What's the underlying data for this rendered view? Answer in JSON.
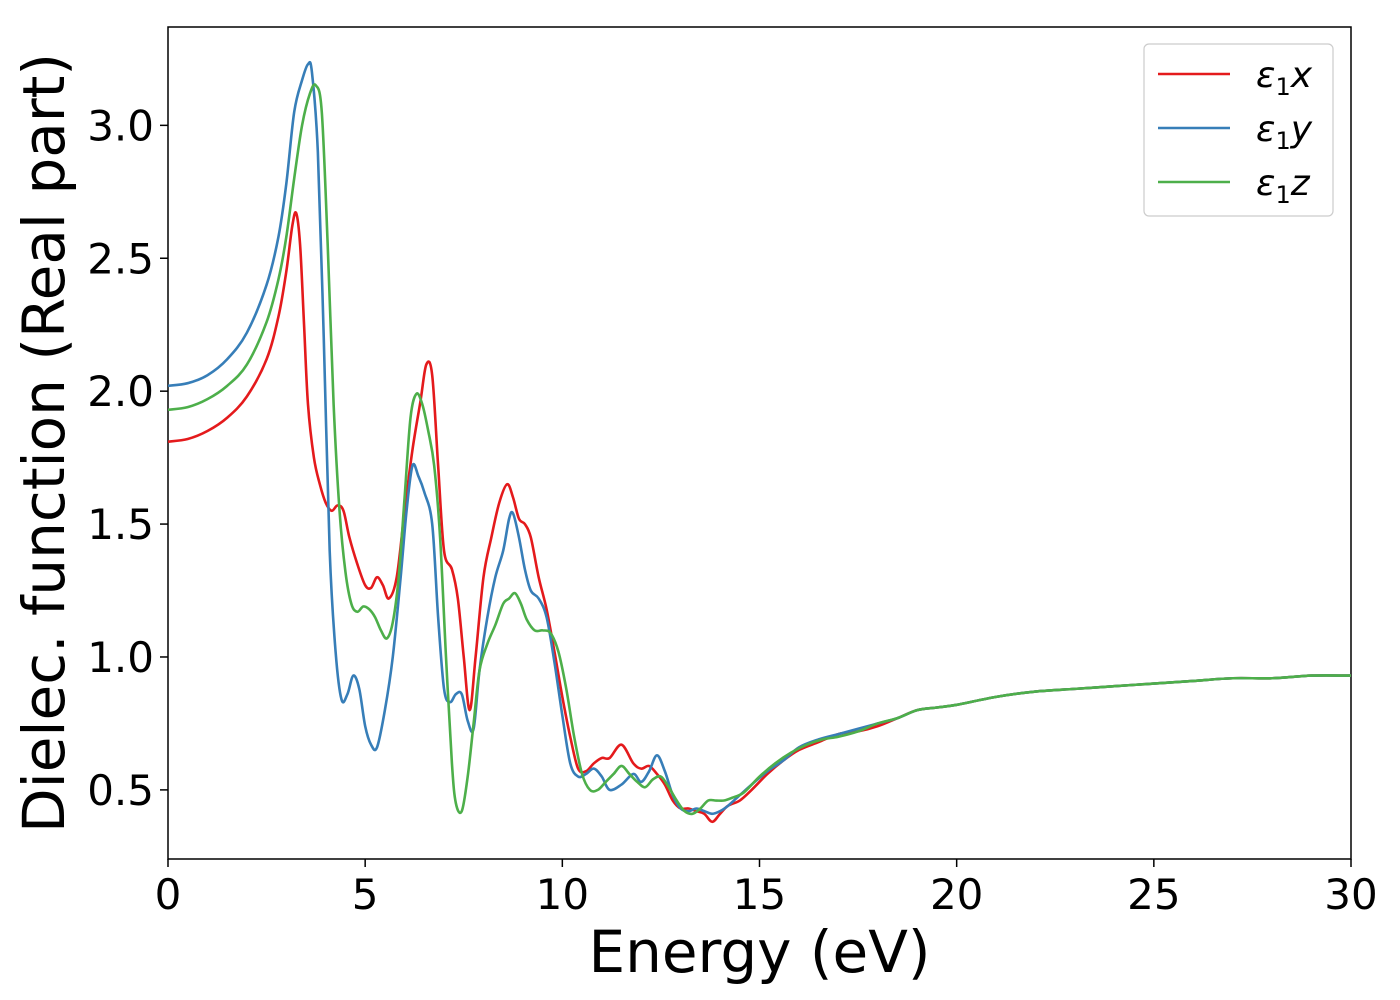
{
  "chart_data": {
    "type": "line",
    "title": "",
    "xlabel": "Energy (eV)",
    "ylabel": "Dielec. function (Real part)",
    "xlim": [
      0,
      30
    ],
    "ylim": [
      0.24,
      3.37
    ],
    "xticks": [
      0,
      5,
      10,
      15,
      20,
      25,
      30
    ],
    "xtick_labels": [
      "0",
      "5",
      "10",
      "15",
      "20",
      "25",
      "30"
    ],
    "yticks": [
      0.5,
      1.0,
      1.5,
      2.0,
      2.5,
      3.0
    ],
    "ytick_labels": [
      "0.5",
      "1.0",
      "1.5",
      "2.0",
      "2.5",
      "3.0"
    ],
    "grid": false,
    "legend_position": "top-right",
    "legend_labels": [
      {
        "base": "ε",
        "sub": "1",
        "axis": "x"
      },
      {
        "base": "ε",
        "sub": "1",
        "axis": "y"
      },
      {
        "base": "ε",
        "sub": "1",
        "axis": "z"
      }
    ],
    "series": [
      {
        "name": "ε1x",
        "color": "#e41a1c",
        "x": [
          0,
          0.5,
          1.0,
          1.5,
          2.0,
          2.5,
          2.8,
          3.0,
          3.15,
          3.25,
          3.35,
          3.45,
          3.55,
          3.7,
          3.85,
          4.0,
          4.15,
          4.3,
          4.45,
          4.6,
          4.8,
          5.0,
          5.15,
          5.3,
          5.45,
          5.6,
          5.8,
          6.0,
          6.2,
          6.4,
          6.55,
          6.7,
          6.85,
          7.0,
          7.2,
          7.35,
          7.5,
          7.65,
          7.8,
          8.0,
          8.2,
          8.4,
          8.6,
          8.75,
          8.9,
          9.05,
          9.2,
          9.4,
          9.6,
          9.8,
          10.0,
          10.2,
          10.4,
          10.6,
          10.8,
          11.0,
          11.2,
          11.5,
          11.8,
          12.0,
          12.2,
          12.4,
          12.6,
          12.8,
          13.0,
          13.2,
          13.4,
          13.6,
          13.8,
          14.0,
          14.2,
          14.5,
          14.8,
          15.2,
          15.6,
          16.0,
          16.5,
          17.0,
          17.5,
          18.0,
          18.5,
          19.0,
          19.5,
          20.0,
          21.0,
          22.0,
          23.0,
          24.0,
          25.0,
          26.0,
          27.0,
          28.0,
          29.0,
          30.0
        ],
        "y": [
          1.81,
          1.82,
          1.85,
          1.9,
          1.98,
          2.12,
          2.28,
          2.45,
          2.62,
          2.67,
          2.55,
          2.25,
          1.95,
          1.75,
          1.65,
          1.58,
          1.55,
          1.57,
          1.55,
          1.45,
          1.35,
          1.27,
          1.26,
          1.3,
          1.27,
          1.22,
          1.3,
          1.55,
          1.78,
          1.96,
          2.1,
          2.06,
          1.72,
          1.4,
          1.33,
          1.22,
          1.0,
          0.8,
          1.0,
          1.3,
          1.45,
          1.58,
          1.65,
          1.6,
          1.52,
          1.5,
          1.45,
          1.3,
          1.18,
          1.02,
          0.85,
          0.7,
          0.58,
          0.57,
          0.6,
          0.62,
          0.62,
          0.67,
          0.6,
          0.58,
          0.59,
          0.56,
          0.52,
          0.46,
          0.43,
          0.43,
          0.42,
          0.41,
          0.38,
          0.41,
          0.44,
          0.46,
          0.5,
          0.56,
          0.61,
          0.65,
          0.68,
          0.71,
          0.72,
          0.74,
          0.77,
          0.8,
          0.81,
          0.82,
          0.85,
          0.87,
          0.88,
          0.89,
          0.9,
          0.91,
          0.92,
          0.92,
          0.93,
          0.93
        ]
      },
      {
        "name": "ε1y",
        "color": "#377eb8",
        "x": [
          0,
          0.5,
          1.0,
          1.5,
          2.0,
          2.5,
          2.8,
          3.0,
          3.2,
          3.4,
          3.55,
          3.65,
          3.8,
          3.95,
          4.1,
          4.25,
          4.4,
          4.55,
          4.7,
          4.85,
          5.0,
          5.15,
          5.3,
          5.5,
          5.7,
          5.9,
          6.05,
          6.2,
          6.35,
          6.5,
          6.7,
          6.85,
          7.0,
          7.15,
          7.3,
          7.45,
          7.6,
          7.75,
          7.9,
          8.1,
          8.3,
          8.5,
          8.65,
          8.75,
          8.9,
          9.05,
          9.2,
          9.4,
          9.6,
          9.8,
          10.0,
          10.2,
          10.4,
          10.6,
          10.8,
          11.0,
          11.2,
          11.5,
          11.8,
          12.0,
          12.2,
          12.4,
          12.6,
          12.8,
          13.0,
          13.2,
          13.4,
          13.6,
          13.8,
          14.0,
          14.2,
          14.5,
          14.8,
          15.2,
          15.6,
          16.0,
          16.5,
          17.0,
          17.5,
          18.0,
          18.5,
          19.0,
          19.5,
          20.0,
          21.0,
          22.0,
          23.0,
          24.0,
          25.0,
          26.0,
          27.0,
          28.0,
          29.0,
          30.0
        ],
        "y": [
          2.02,
          2.03,
          2.06,
          2.12,
          2.22,
          2.4,
          2.58,
          2.78,
          3.05,
          3.17,
          3.23,
          3.2,
          2.9,
          2.2,
          1.4,
          1.02,
          0.84,
          0.86,
          0.93,
          0.88,
          0.74,
          0.67,
          0.66,
          0.8,
          1.0,
          1.3,
          1.55,
          1.72,
          1.68,
          1.62,
          1.5,
          1.15,
          0.88,
          0.83,
          0.86,
          0.86,
          0.76,
          0.73,
          0.95,
          1.15,
          1.3,
          1.4,
          1.52,
          1.54,
          1.45,
          1.33,
          1.25,
          1.22,
          1.15,
          0.98,
          0.78,
          0.6,
          0.55,
          0.56,
          0.58,
          0.55,
          0.5,
          0.52,
          0.56,
          0.53,
          0.57,
          0.63,
          0.57,
          0.48,
          0.43,
          0.42,
          0.43,
          0.42,
          0.41,
          0.42,
          0.44,
          0.48,
          0.52,
          0.57,
          0.61,
          0.66,
          0.69,
          0.71,
          0.73,
          0.75,
          0.77,
          0.8,
          0.81,
          0.82,
          0.85,
          0.87,
          0.88,
          0.89,
          0.9,
          0.91,
          0.92,
          0.92,
          0.93,
          0.93
        ]
      },
      {
        "name": "ε1z",
        "color": "#4daf4a",
        "x": [
          0,
          0.5,
          1.0,
          1.5,
          2.0,
          2.5,
          2.8,
          3.0,
          3.2,
          3.4,
          3.6,
          3.75,
          3.9,
          4.05,
          4.2,
          4.35,
          4.5,
          4.65,
          4.8,
          4.95,
          5.1,
          5.25,
          5.4,
          5.55,
          5.7,
          5.85,
          6.0,
          6.15,
          6.3,
          6.45,
          6.6,
          6.75,
          6.9,
          7.05,
          7.2,
          7.3,
          7.45,
          7.6,
          7.75,
          7.9,
          8.1,
          8.3,
          8.5,
          8.65,
          8.8,
          8.95,
          9.1,
          9.3,
          9.5,
          9.7,
          9.9,
          10.1,
          10.3,
          10.5,
          10.7,
          10.9,
          11.1,
          11.3,
          11.5,
          11.7,
          11.9,
          12.1,
          12.3,
          12.5,
          12.7,
          12.9,
          13.1,
          13.3,
          13.5,
          13.7,
          13.9,
          14.1,
          14.3,
          14.6,
          15.0,
          15.4,
          15.8,
          16.2,
          16.6,
          17.0,
          17.5,
          18.0,
          18.5,
          19.0,
          19.5,
          20.0,
          21.0,
          22.0,
          23.0,
          24.0,
          25.0,
          26.0,
          27.0,
          28.0,
          29.0,
          30.0
        ],
        "y": [
          1.93,
          1.94,
          1.97,
          2.02,
          2.1,
          2.26,
          2.42,
          2.58,
          2.8,
          3.0,
          3.12,
          3.15,
          3.05,
          2.55,
          1.95,
          1.55,
          1.32,
          1.2,
          1.17,
          1.19,
          1.18,
          1.15,
          1.1,
          1.07,
          1.13,
          1.3,
          1.6,
          1.9,
          1.99,
          1.95,
          1.85,
          1.72,
          1.45,
          1.0,
          0.6,
          0.45,
          0.42,
          0.55,
          0.75,
          0.95,
          1.05,
          1.12,
          1.2,
          1.22,
          1.24,
          1.2,
          1.14,
          1.1,
          1.1,
          1.09,
          1.02,
          0.88,
          0.7,
          0.56,
          0.5,
          0.5,
          0.53,
          0.56,
          0.59,
          0.56,
          0.53,
          0.51,
          0.54,
          0.55,
          0.51,
          0.46,
          0.42,
          0.41,
          0.43,
          0.46,
          0.46,
          0.46,
          0.47,
          0.49,
          0.55,
          0.6,
          0.64,
          0.67,
          0.69,
          0.7,
          0.72,
          0.75,
          0.77,
          0.8,
          0.81,
          0.82,
          0.85,
          0.87,
          0.88,
          0.89,
          0.9,
          0.91,
          0.92,
          0.92,
          0.93,
          0.93
        ]
      }
    ]
  }
}
